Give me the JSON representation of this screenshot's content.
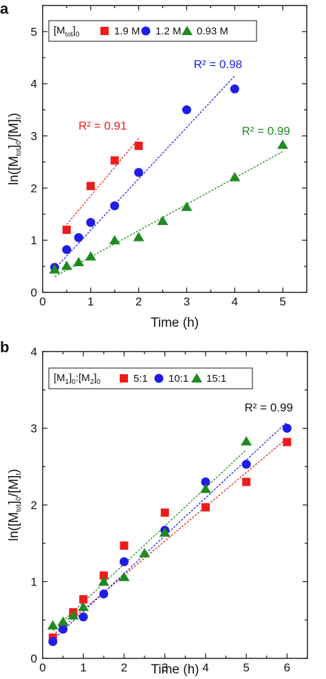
{
  "chart_data": [
    {
      "panel": "a",
      "type": "scatter",
      "xlabel": "Time (h)",
      "ylabel_parts": [
        "ln([M",
        "tot",
        "]",
        "0",
        "/[M]",
        "t",
        ")"
      ],
      "xlim": [
        0,
        5.5
      ],
      "ylim": [
        0,
        5.5
      ],
      "xticks": [
        0,
        1,
        2,
        3,
        4,
        5
      ],
      "yticks": [
        0,
        1,
        2,
        3,
        4,
        5
      ],
      "legend_title_parts": [
        "[M",
        "tot",
        "]",
        "0"
      ],
      "legend_position": "top-left",
      "series": [
        {
          "name": "1.9 M",
          "marker": "square",
          "color": "#ee1c1c",
          "x": [
            0.5,
            1.0,
            1.5,
            2.0
          ],
          "y": [
            1.2,
            2.04,
            2.53,
            2.81
          ],
          "fit": {
            "x": [
              0.5,
              2.0
            ],
            "y": [
              1.3,
              2.95
            ]
          },
          "r2": "R² = 0.91",
          "r2_at": [
            1.25,
            3.12
          ]
        },
        {
          "name": "1.2 M",
          "marker": "circle",
          "color": "#1e1ee8",
          "x": [
            0.25,
            0.5,
            0.75,
            1.0,
            1.5,
            2.0,
            3.0,
            4.0
          ],
          "y": [
            0.48,
            0.82,
            1.05,
            1.34,
            1.66,
            2.3,
            3.5,
            3.9
          ],
          "fit": {
            "x": [
              0.25,
              4.0
            ],
            "y": [
              0.45,
              4.15
            ]
          },
          "r2": "R² = 0.98",
          "r2_at": [
            3.65,
            4.3
          ]
        },
        {
          "name": "0.93 M",
          "marker": "triangle",
          "color": "#208a20",
          "x": [
            0.25,
            0.5,
            0.75,
            1.0,
            1.5,
            2.0,
            2.5,
            3.0,
            4.0,
            5.0
          ],
          "y": [
            0.44,
            0.51,
            0.58,
            0.69,
            1.0,
            1.06,
            1.37,
            1.64,
            2.21,
            2.83
          ],
          "fit": {
            "x": [
              0.25,
              5.0
            ],
            "y": [
              0.3,
              2.7
            ]
          },
          "r2": "R² = 0.99",
          "r2_at": [
            4.65,
            3.02
          ]
        }
      ]
    },
    {
      "panel": "b",
      "type": "scatter",
      "xlabel": "Time (h)",
      "ylabel_parts": [
        "ln([M",
        "tot",
        "]",
        "0",
        "/[M]",
        "t",
        ")"
      ],
      "xlim": [
        0,
        6.5
      ],
      "ylim": [
        0,
        4
      ],
      "xticks": [
        0,
        1,
        2,
        3,
        4,
        5,
        6
      ],
      "yticks": [
        0,
        1,
        2,
        3,
        4
      ],
      "legend_title_parts": [
        "[M",
        "1",
        "]",
        "0",
        ":[M",
        "2",
        "]",
        "0"
      ],
      "legend_position": "top-left",
      "r2": "R² = 0.99",
      "r2_at": [
        5.55,
        3.22
      ],
      "series": [
        {
          "name": "5:1",
          "marker": "square",
          "color": "#ee1c1c",
          "x": [
            0.25,
            0.5,
            0.75,
            1.0,
            1.5,
            2.0,
            3.0,
            4.0,
            5.0,
            6.0
          ],
          "y": [
            0.27,
            0.4,
            0.6,
            0.77,
            1.08,
            1.47,
            1.9,
            1.97,
            2.3,
            2.82
          ],
          "fit": {
            "x": [
              0.25,
              6.0
            ],
            "y": [
              0.3,
              2.87
            ]
          }
        },
        {
          "name": "10:1",
          "marker": "circle",
          "color": "#1e1ee8",
          "x": [
            0.25,
            0.5,
            1.0,
            1.5,
            2.0,
            3.0,
            4.0,
            5.0,
            6.0
          ],
          "y": [
            0.22,
            0.38,
            0.54,
            0.84,
            1.26,
            1.67,
            2.3,
            2.53,
            3.0
          ],
          "fit": {
            "x": [
              0.25,
              6.0
            ],
            "y": [
              0.24,
              3.08
            ]
          }
        },
        {
          "name": "15:1",
          "marker": "triangle",
          "color": "#208a20",
          "x": [
            0.25,
            0.5,
            0.75,
            1.0,
            1.5,
            2.0,
            2.5,
            3.0,
            4.0,
            5.0
          ],
          "y": [
            0.43,
            0.48,
            0.56,
            0.67,
            1.0,
            1.06,
            1.37,
            1.64,
            2.21,
            2.83
          ],
          "fit": {
            "x": [
              0.25,
              5.0
            ],
            "y": [
              0.36,
              2.72
            ]
          }
        }
      ]
    }
  ]
}
